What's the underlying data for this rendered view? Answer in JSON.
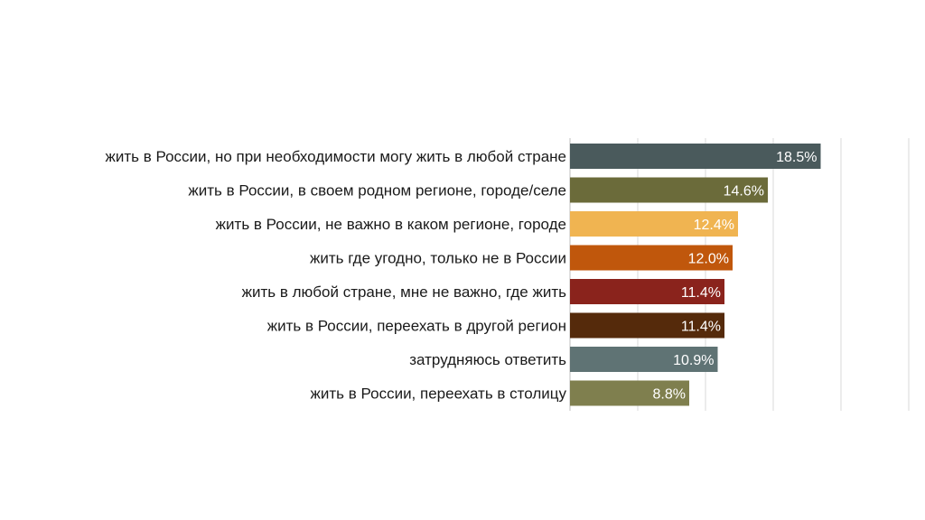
{
  "chart_data": {
    "type": "bar",
    "orientation": "horizontal",
    "categories": [
      "жить в России, но при необходимости могу жить в любой стране",
      "жить в России, в своем родном регионе, городе/селе",
      "жить в России, не важно в каком регионе, городе",
      "жить где угодно, только не в России",
      "жить в любой стране, мне не важно, где жить",
      "жить в России, переехать в другой регион",
      "затрудняюсь ответить",
      "жить в России, переехать в столицу"
    ],
    "values": [
      18.5,
      14.6,
      12.4,
      12.0,
      11.4,
      11.4,
      10.9,
      8.8
    ],
    "value_labels": [
      "18.5%",
      "14.6%",
      "12.4%",
      "12.0%",
      "11.4%",
      "11.4%",
      "10.9%",
      "8.8%"
    ],
    "bar_colors": [
      "#4a5a5c",
      "#6b6b3a",
      "#f0b451",
      "#c0570c",
      "#8a231c",
      "#552a0b",
      "#5f7374",
      "#7f7f4e"
    ],
    "xlim": [
      0,
      25
    ],
    "grid": true,
    "title": "",
    "xlabel": "",
    "ylabel": ""
  }
}
